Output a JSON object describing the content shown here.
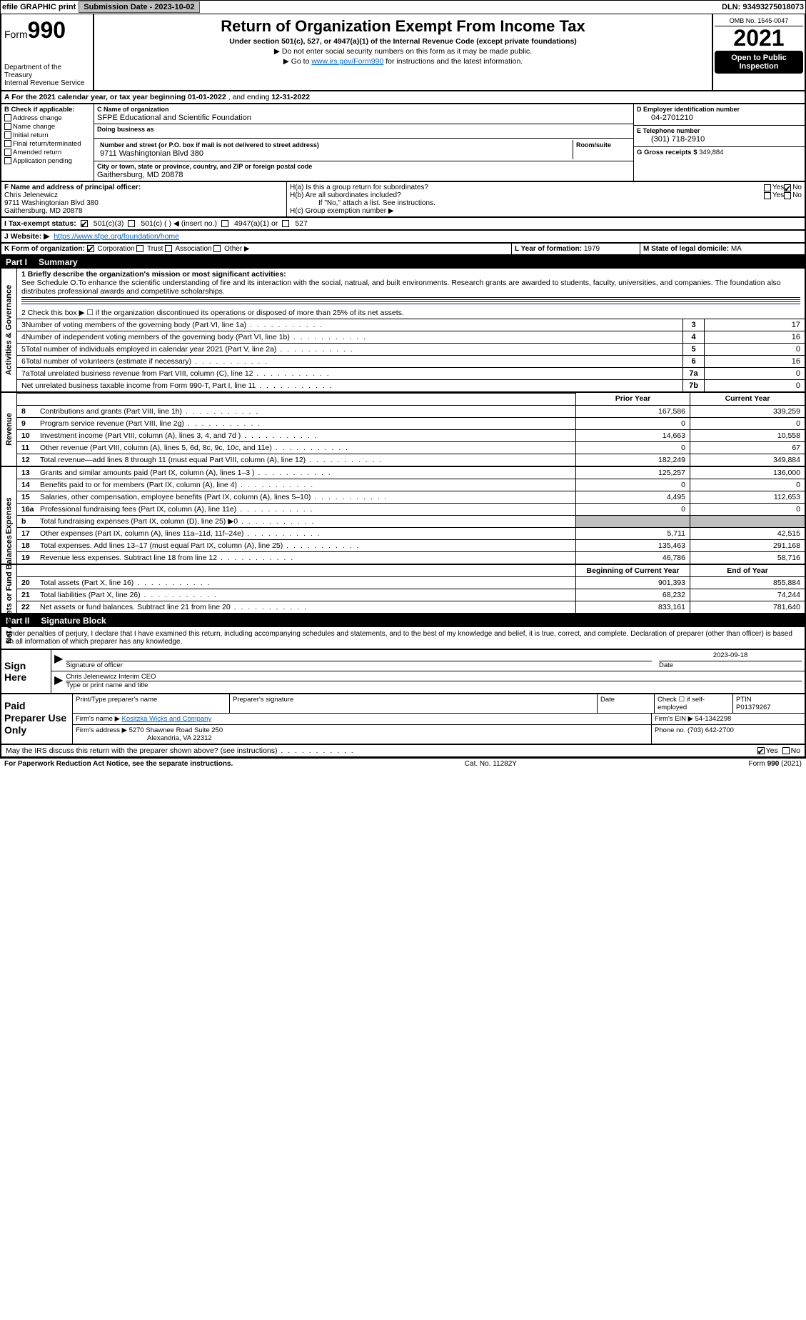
{
  "topbar": {
    "efile": "efile GRAPHIC print",
    "submission": "Submission Date - 2023-10-02",
    "dln": "DLN: 93493275018073"
  },
  "header": {
    "form_word": "Form",
    "form_num": "990",
    "dept1": "Department of the Treasury",
    "dept2": "Internal Revenue Service",
    "title": "Return of Organization Exempt From Income Tax",
    "sub": "Under section 501(c), 527, or 4947(a)(1) of the Internal Revenue Code (except private foundations)",
    "note1": "▶ Do not enter social security numbers on this form as it may be made public.",
    "note2_pre": "▶ Go to ",
    "note2_link": "www.irs.gov/Form990",
    "note2_post": " for instructions and the latest information.",
    "omb": "OMB No. 1545-0047",
    "year": "2021",
    "open": "Open to Public Inspection"
  },
  "rowA": {
    "text_pre": "A For the 2021 calendar year, or tax year beginning ",
    "begin": "01-01-2022",
    "mid": " , and ending ",
    "end": "12-31-2022"
  },
  "boxB": {
    "hdr": "B Check if applicable:",
    "o1": "Address change",
    "o2": "Name change",
    "o3": "Initial return",
    "o4": "Final return/terminated",
    "o5": "Amended return",
    "o6": "Application pending"
  },
  "boxC": {
    "name_lbl": "C Name of organization",
    "name": "SFPE Educational and Scientific Foundation",
    "dba_lbl": "Doing business as",
    "street_lbl": "Number and street (or P.O. box if mail is not delivered to street address)",
    "room_lbl": "Room/suite",
    "street": "9711 Washingtonian Blvd 380",
    "city_lbl": "City or town, state or province, country, and ZIP or foreign postal code",
    "city": "Gaithersburg, MD  20878"
  },
  "boxD": {
    "lbl": "D Employer identification number",
    "val": "04-2701210"
  },
  "boxE": {
    "lbl": "E Telephone number",
    "val": "(301) 718-2910"
  },
  "boxG": {
    "lbl": "G Gross receipts $",
    "val": "349,884"
  },
  "boxF": {
    "lbl": "F Name and address of principal officer:",
    "name": "Chris Jelenewicz",
    "addr1": "9711 Washingtonian Blvd 380",
    "addr2": "Gaithersburg, MD  20878"
  },
  "boxH": {
    "ha": "H(a)  Is this a group return for subordinates?",
    "hb": "H(b)  Are all subordinates included?",
    "hb_note": "If \"No,\" attach a list. See instructions.",
    "hc": "H(c)  Group exemption number ▶",
    "yes": "Yes",
    "no": "No"
  },
  "taxrow": {
    "lbl": "I  Tax-exempt status:",
    "o1": "501(c)(3)",
    "o2": "501(c) (  ) ◀ (insert no.)",
    "o3": "4947(a)(1) or",
    "o4": "527"
  },
  "web": {
    "lbl": "J  Website: ▶",
    "val": "https://www.sfpe.org/foundation/home"
  },
  "rowK": {
    "lbl": "K Form of organization:",
    "o1": "Corporation",
    "o2": "Trust",
    "o3": "Association",
    "o4": "Other ▶"
  },
  "rowL": {
    "lbl": "L Year of formation:",
    "val": "1979"
  },
  "rowM": {
    "lbl": "M State of legal domicile:",
    "val": "MA"
  },
  "part1": {
    "hdr_part": "Part I",
    "hdr_title": "Summary",
    "side1": "Activities & Governance",
    "side2": "Revenue",
    "side3": "Expenses",
    "side4": "Net Assets or Fund Balances",
    "l1_lbl": "1  Briefly describe the organization's mission or most significant activities:",
    "l1_txt": "See Schedule O.To enhance the scientific understanding of fire and its interaction with the social, natrual, and built environments. Research grants are awarded to students, faculty, universities, and companies. The foundation also distributes professional awards and competitive scholarships.",
    "l2": "2   Check this box ▶ ☐  if the organization discontinued its operations or disposed of more than 25% of its net assets.",
    "lines": [
      {
        "n": "3",
        "t": "Number of voting members of the governing body (Part VI, line 1a)",
        "k": "3",
        "v": "17"
      },
      {
        "n": "4",
        "t": "Number of independent voting members of the governing body (Part VI, line 1b)",
        "k": "4",
        "v": "16"
      },
      {
        "n": "5",
        "t": "Total number of individuals employed in calendar year 2021 (Part V, line 2a)",
        "k": "5",
        "v": "0"
      },
      {
        "n": "6",
        "t": "Total number of volunteers (estimate if necessary)",
        "k": "6",
        "v": "16"
      },
      {
        "n": "7a",
        "t": "Total unrelated business revenue from Part VIII, column (C), line 12",
        "k": "7a",
        "v": "0"
      },
      {
        "n": "",
        "t": "Net unrelated business taxable income from Form 990-T, Part I, line 11",
        "k": "7b",
        "v": "0"
      }
    ],
    "col_prior": "Prior Year",
    "col_current": "Current Year",
    "rev": [
      {
        "n": "8",
        "t": "Contributions and grants (Part VIII, line 1h)",
        "p": "167,586",
        "c": "339,259"
      },
      {
        "n": "9",
        "t": "Program service revenue (Part VIII, line 2g)",
        "p": "0",
        "c": "0"
      },
      {
        "n": "10",
        "t": "Investment income (Part VIII, column (A), lines 3, 4, and 7d )",
        "p": "14,663",
        "c": "10,558"
      },
      {
        "n": "11",
        "t": "Other revenue (Part VIII, column (A), lines 5, 6d, 8c, 9c, 10c, and 11e)",
        "p": "0",
        "c": "67"
      },
      {
        "n": "12",
        "t": "Total revenue—add lines 8 through 11 (must equal Part VIII, column (A), line 12)",
        "p": "182,249",
        "c": "349,884"
      }
    ],
    "exp": [
      {
        "n": "13",
        "t": "Grants and similar amounts paid (Part IX, column (A), lines 1–3 )",
        "p": "125,257",
        "c": "136,000"
      },
      {
        "n": "14",
        "t": "Benefits paid to or for members (Part IX, column (A), line 4)",
        "p": "0",
        "c": "0"
      },
      {
        "n": "15",
        "t": "Salaries, other compensation, employee benefits (Part IX, column (A), lines 5–10)",
        "p": "4,495",
        "c": "112,653"
      },
      {
        "n": "16a",
        "t": "Professional fundraising fees (Part IX, column (A), line 11e)",
        "p": "0",
        "c": "0"
      },
      {
        "n": "b",
        "t": "Total fundraising expenses (Part IX, column (D), line 25) ▶0",
        "p": "SHADE",
        "c": "SHADE"
      },
      {
        "n": "17",
        "t": "Other expenses (Part IX, column (A), lines 11a–11d, 11f–24e)",
        "p": "5,711",
        "c": "42,515"
      },
      {
        "n": "18",
        "t": "Total expenses. Add lines 13–17 (must equal Part IX, column (A), line 25)",
        "p": "135,463",
        "c": "291,168"
      },
      {
        "n": "19",
        "t": "Revenue less expenses. Subtract line 18 from line 12",
        "p": "46,786",
        "c": "58,716"
      }
    ],
    "col_begin": "Beginning of Current Year",
    "col_end": "End of Year",
    "net": [
      {
        "n": "20",
        "t": "Total assets (Part X, line 16)",
        "p": "901,393",
        "c": "855,884"
      },
      {
        "n": "21",
        "t": "Total liabilities (Part X, line 26)",
        "p": "68,232",
        "c": "74,244"
      },
      {
        "n": "22",
        "t": "Net assets or fund balances. Subtract line 21 from line 20",
        "p": "833,161",
        "c": "781,640"
      }
    ]
  },
  "part2": {
    "hdr_part": "Part II",
    "hdr_title": "Signature Block",
    "decl": "Under penalties of perjury, I declare that I have examined this return, including accompanying schedules and statements, and to the best of my knowledge and belief, it is true, correct, and complete. Declaration of preparer (other than officer) is based on all information of which preparer has any knowledge."
  },
  "sign": {
    "here": "Sign Here",
    "sig_lbl": "Signature of officer",
    "date_lbl": "Date",
    "date": "2023-09-18",
    "name": "Chris Jelenewicz  Interim CEO",
    "name_lbl": "Type or print name and title"
  },
  "prep": {
    "title": "Paid Preparer Use Only",
    "h1": "Print/Type preparer's name",
    "h2": "Preparer's signature",
    "h3": "Date",
    "h4": "Check ☐ if self-employed",
    "h5_lbl": "PTIN",
    "h5": "P01379267",
    "firm_lbl": "Firm's name    ▶",
    "firm": "Kositzka Wicks and Company",
    "ein_lbl": "Firm's EIN ▶",
    "ein": "54-1342298",
    "addr_lbl": "Firm's address ▶",
    "addr1": "5270 Shawnee Road Suite 250",
    "addr2": "Alexandria, VA  22312",
    "phone_lbl": "Phone no.",
    "phone": "(703) 642-2700"
  },
  "mayirs": {
    "q": "May the IRS discuss this return with the preparer shown above? (see instructions)",
    "yes": "Yes",
    "no": "No"
  },
  "footer": {
    "l": "For Paperwork Reduction Act Notice, see the separate instructions.",
    "c": "Cat. No. 11282Y",
    "r": "Form 990 (2021)"
  }
}
